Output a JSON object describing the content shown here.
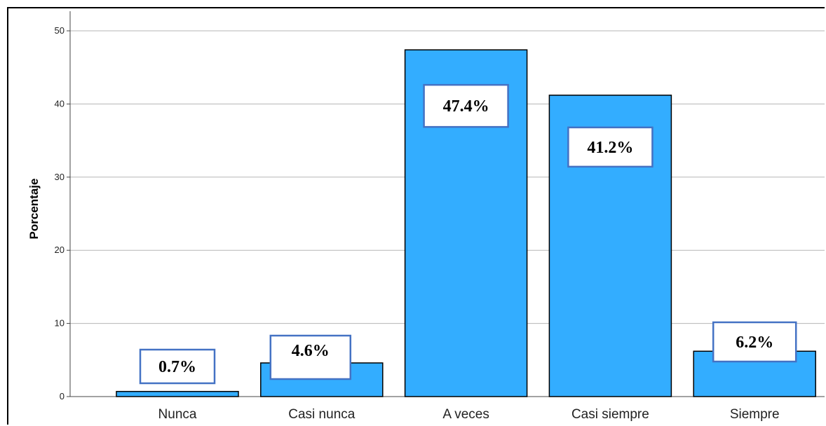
{
  "chart_data": {
    "type": "bar",
    "title": "",
    "xlabel": "",
    "ylabel": "Porcentaje",
    "ylim": [
      0,
      50
    ],
    "yticks": [
      0,
      10,
      20,
      30,
      40,
      50
    ],
    "grid": true,
    "categories": [
      "Nunca",
      "Casi nunca",
      "A veces",
      "Casi siempre",
      "Siempre"
    ],
    "values": [
      0.7,
      4.6,
      47.4,
      41.2,
      6.2
    ],
    "data_labels": [
      "0.7%",
      "4.6%",
      "47.4%",
      "41.2%",
      "6.2%"
    ],
    "bar_color": "#33adff",
    "label_box_border_color": "#4472c4"
  }
}
